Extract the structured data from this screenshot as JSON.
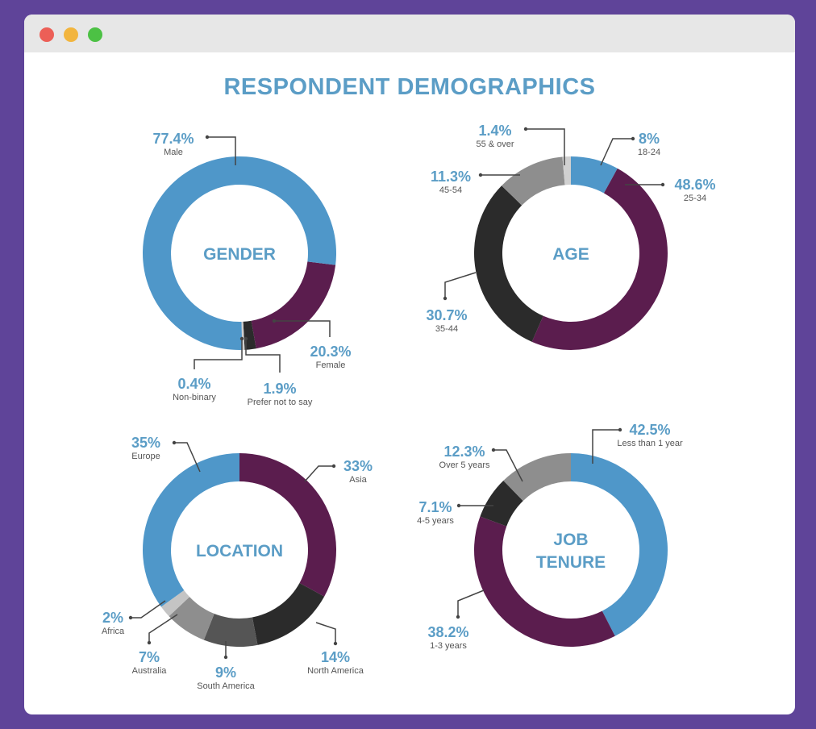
{
  "window": {
    "controls": [
      {
        "name": "close",
        "color": "#ec5f57"
      },
      {
        "name": "minimize",
        "color": "#f2b53e"
      },
      {
        "name": "maximize",
        "color": "#4cc144"
      }
    ]
  },
  "title": "RESPONDENT DEMOGRAPHICS",
  "chart_data": [
    {
      "type": "pie",
      "variant": "donut",
      "title": [
        "GENDER"
      ],
      "unit": "%",
      "segments": [
        {
          "label": "Female",
          "value": 20.3,
          "color": "#5b1d4e"
        },
        {
          "label": "Prefer not to say",
          "value": 1.9,
          "color": "#2b2b2b"
        },
        {
          "label": "Non-binary",
          "value": 0.4,
          "color": "#d0d0d0"
        },
        {
          "label": "Male",
          "value": 77.4,
          "color": "#4f97c9"
        }
      ]
    },
    {
      "type": "pie",
      "variant": "donut",
      "title": [
        "AGE"
      ],
      "unit": "%",
      "segments": [
        {
          "label": "18-24",
          "value": 8,
          "color": "#4f97c9"
        },
        {
          "label": "25-34",
          "value": 48.6,
          "color": "#5b1d4e"
        },
        {
          "label": "35-44",
          "value": 30.7,
          "color": "#2b2b2b"
        },
        {
          "label": "45-54",
          "value": 11.3,
          "color": "#8e8e8e"
        },
        {
          "label": "55 & over",
          "value": 1.4,
          "color": "#d0d0d0"
        }
      ]
    },
    {
      "type": "pie",
      "variant": "donut",
      "title": [
        "LOCATION"
      ],
      "unit": "%",
      "segments": [
        {
          "label": "Asia",
          "value": 33,
          "color": "#5b1d4e"
        },
        {
          "label": "North America",
          "value": 14,
          "color": "#2b2b2b"
        },
        {
          "label": "South America",
          "value": 9,
          "color": "#555555"
        },
        {
          "label": "Australia",
          "value": 7,
          "color": "#8e8e8e"
        },
        {
          "label": "Africa",
          "value": 2,
          "color": "#c4c4c4"
        },
        {
          "label": "Europe",
          "value": 35,
          "color": "#4f97c9"
        }
      ]
    },
    {
      "type": "pie",
      "variant": "donut",
      "title": [
        "JOB",
        "TENURE"
      ],
      "unit": "%",
      "segments": [
        {
          "label": "Less than 1 year",
          "value": 42.5,
          "color": "#4f97c9"
        },
        {
          "label": "1-3 years",
          "value": 38.2,
          "color": "#5b1d4e"
        },
        {
          "label": "4-5 years",
          "value": 7.1,
          "color": "#2b2b2b"
        },
        {
          "label": "Over 5 years",
          "value": 12.3,
          "color": "#8e8e8e"
        }
      ]
    }
  ]
}
